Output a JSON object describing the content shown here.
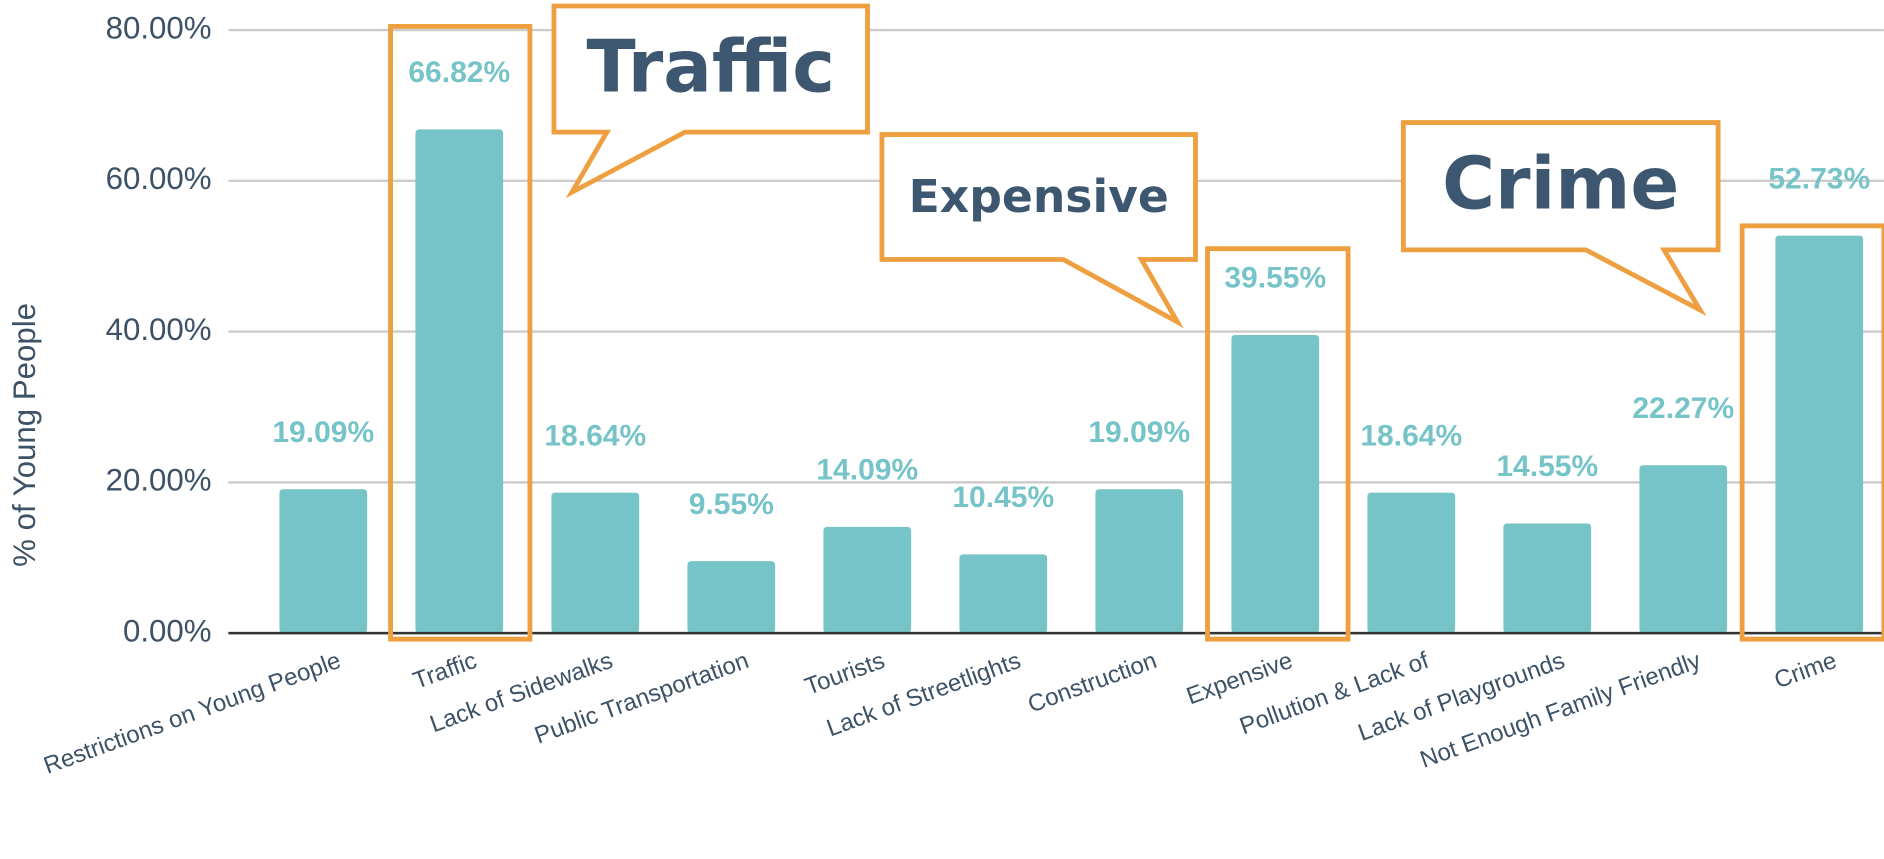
{
  "chart_data": {
    "type": "bar",
    "y_label": "% of Young People",
    "categories": [
      "Restrictions on Young People",
      "Traffic",
      "Lack of Sidewalks",
      "Public Transportation",
      "Tourists",
      "Lack of Streetlights",
      "Construction",
      "Expensive",
      "Pollution & Lack of",
      "Lack of Playgrounds",
      "Not Enough Family Friendly",
      "Crime"
    ],
    "values": [
      19.09,
      66.82,
      18.64,
      9.55,
      14.09,
      10.45,
      19.09,
      39.55,
      18.64,
      14.55,
      22.27,
      52.73
    ],
    "value_labels": [
      "19.09%",
      "66.82%",
      "18.64%",
      "9.55%",
      "14.09%",
      "10.45%",
      "19.09%",
      "39.55%",
      "18.64%",
      "14.55%",
      "22.27%",
      "52.73%"
    ],
    "color": "#76c4c7",
    "ylim": [
      0,
      80
    ],
    "yticks": [
      {
        "value": 0,
        "label": "0.00%"
      },
      {
        "value": 20,
        "label": "20.00%"
      },
      {
        "value": 40,
        "label": "40.00%"
      },
      {
        "value": 60,
        "label": "60.00%"
      },
      {
        "value": 80,
        "label": "80.00%"
      }
    ],
    "grid": true,
    "annotations": [
      "Traffic",
      "Expensive",
      "Crime"
    ]
  }
}
